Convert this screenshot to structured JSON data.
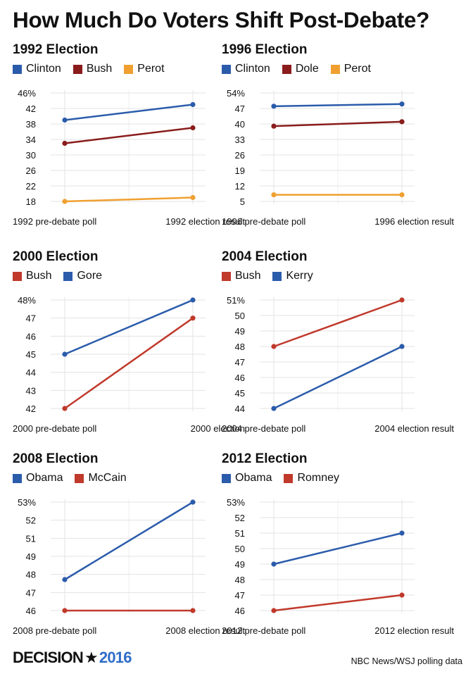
{
  "title": "How Much Do Voters Shift Post-Debate?",
  "footer": {
    "brand_decision": "DECISION",
    "brand_year": "2016",
    "source": "NBC News/WSJ polling data"
  },
  "chart_data": [
    {
      "type": "line",
      "title": "1992 Election",
      "categories": [
        "1992 pre-debate poll",
        "1992 election result"
      ],
      "ylim": [
        18,
        46
      ],
      "y_ticks": [
        "46%",
        "42",
        "38",
        "34",
        "30",
        "26",
        "22",
        "18"
      ],
      "series": [
        {
          "name": "Clinton",
          "color": "#2b5cab",
          "values": [
            39,
            43
          ]
        },
        {
          "name": "Bush",
          "color": "#8a1c1c",
          "values": [
            33,
            37
          ]
        },
        {
          "name": "Perot",
          "color": "#f0a030",
          "values": [
            18,
            19
          ]
        }
      ]
    },
    {
      "type": "line",
      "title": "1996 Election",
      "categories": [
        "1996 pre-debate poll",
        "1996 election result"
      ],
      "ylim": [
        5,
        54
      ],
      "y_ticks": [
        "54%",
        "47",
        "40",
        "33",
        "26",
        "19",
        "12",
        "5"
      ],
      "series": [
        {
          "name": "Clinton",
          "color": "#2b5cab",
          "values": [
            48,
            49
          ]
        },
        {
          "name": "Dole",
          "color": "#8a1c1c",
          "values": [
            39,
            41
          ]
        },
        {
          "name": "Perot",
          "color": "#f0a030",
          "values": [
            8,
            8
          ]
        }
      ]
    },
    {
      "type": "line",
      "title": "2000 Election",
      "categories": [
        "2000 pre-debate poll",
        "2000 election"
      ],
      "ylim": [
        42,
        48
      ],
      "y_ticks": [
        "48%",
        "47",
        "46",
        "45",
        "44",
        "43",
        "42"
      ],
      "series": [
        {
          "name": "Bush",
          "color": "#c0392b",
          "values": [
            42,
            47
          ]
        },
        {
          "name": "Gore",
          "color": "#2b5cab",
          "values": [
            45,
            48
          ]
        }
      ]
    },
    {
      "type": "line",
      "title": "2004 Election",
      "categories": [
        "2004 pre-debate poll",
        "2004 election result"
      ],
      "ylim": [
        44,
        51
      ],
      "y_ticks": [
        "51%",
        "50",
        "49",
        "48",
        "47",
        "46",
        "45",
        "44"
      ],
      "series": [
        {
          "name": "Bush",
          "color": "#c0392b",
          "values": [
            48,
            51
          ]
        },
        {
          "name": "Kerry",
          "color": "#2b5cab",
          "values": [
            44,
            48
          ]
        }
      ]
    },
    {
      "type": "line",
      "title": "2008 Election",
      "categories": [
        "2008 pre-debate poll",
        "2008 election result"
      ],
      "ylim": [
        46,
        53
      ],
      "y_ticks": [
        "53%",
        "52",
        "51",
        "49",
        "48",
        "47",
        "46"
      ],
      "series": [
        {
          "name": "Obama",
          "color": "#2b5cab",
          "values": [
            48,
            53
          ]
        },
        {
          "name": "McCain",
          "color": "#c0392b",
          "values": [
            46,
            46
          ]
        }
      ]
    },
    {
      "type": "line",
      "title": "2012 Election",
      "categories": [
        "2012 pre-debate poll",
        "2012 election result"
      ],
      "ylim": [
        46,
        53
      ],
      "y_ticks": [
        "53%",
        "52",
        "51",
        "50",
        "49",
        "48",
        "47",
        "46"
      ],
      "series": [
        {
          "name": "Obama",
          "color": "#2b5cab",
          "values": [
            49,
            51
          ]
        },
        {
          "name": "Romney",
          "color": "#c0392b",
          "values": [
            46,
            47
          ]
        }
      ]
    }
  ]
}
